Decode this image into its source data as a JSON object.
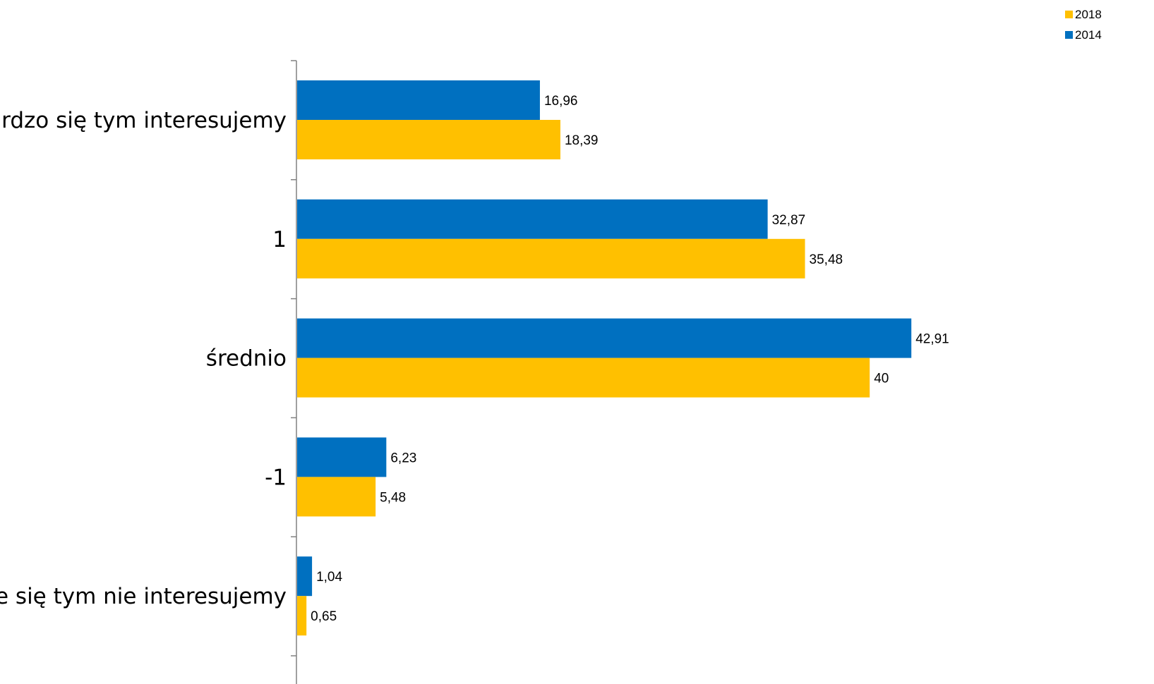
{
  "chart_data": {
    "type": "bar",
    "orientation": "horizontal",
    "categories": [
      "bardzo się tym interesujemy",
      "1",
      "średnio",
      "-1",
      "w ogóle się tym nie interesujemy"
    ],
    "series": [
      {
        "name": "2014",
        "color": "#0070C0",
        "values": [
          16.96,
          32.87,
          42.91,
          6.23,
          1.04
        ],
        "labels": [
          "16,96",
          "32,87",
          "42,91",
          "6,23",
          "1,04"
        ]
      },
      {
        "name": "2018",
        "color": "#FFC000",
        "values": [
          18.39,
          35.48,
          40,
          5.48,
          0.65
        ],
        "labels": [
          "18,39",
          "35,48",
          "40",
          "5,48",
          "0,65"
        ]
      }
    ],
    "legend": {
      "position": "top-right",
      "order": [
        "2018",
        "2014"
      ]
    },
    "xlim": [
      0,
      50
    ],
    "grid": false,
    "title": "",
    "xlabel": "",
    "ylabel": ""
  }
}
